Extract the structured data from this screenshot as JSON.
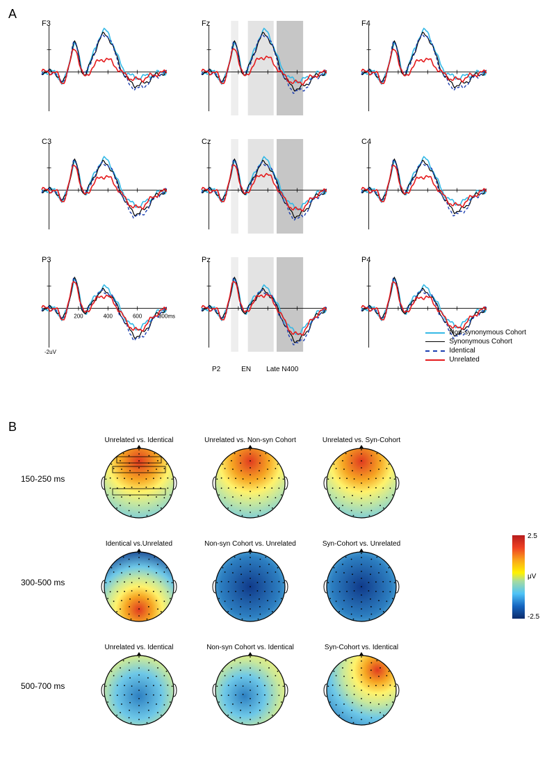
{
  "panelA": {
    "label": "A",
    "electrodes": [
      "F3",
      "Fz",
      "F4",
      "C3",
      "Cz",
      "C4",
      "P3",
      "Pz",
      "P4"
    ],
    "x_range_ms": [
      -50,
      800
    ],
    "x_ticks": [
      200,
      400,
      600
    ],
    "x_tick_last_label": "800ms",
    "y_scale_uv": 2,
    "y_scale_label": "-2uV",
    "conditions": [
      {
        "name": "Non-synonymous Cohort",
        "color": "#35b9e6",
        "dash": "none",
        "width": 1.6
      },
      {
        "name": "Synonymous Cohort",
        "color": "#000000",
        "dash": "none",
        "width": 1.2
      },
      {
        "name": "Identical",
        "color": "#1c3fb0",
        "dash": "4,3",
        "width": 1.4
      },
      {
        "name": "Unrelated",
        "color": "#e41a1c",
        "dash": "none",
        "width": 1.6
      }
    ],
    "bands": [
      {
        "label": "P2",
        "start_ms": 150,
        "end_ms": 200,
        "fill": "#eeeeee"
      },
      {
        "label": "EN",
        "start_ms": 265,
        "end_ms": 440,
        "fill": "#e3e3e3"
      },
      {
        "label": "Late N400",
        "start_ms": 460,
        "end_ms": 640,
        "fill": "#c6c6c6"
      }
    ],
    "band_columns": [
      1
    ],
    "waveforms": {
      "F3": {
        "peak_row": 0,
        "unrel_offset": -2.2,
        "late_drop": -1.5
      },
      "Fz": {
        "peak_row": 0,
        "unrel_offset": -2.0,
        "late_drop": -1.8
      },
      "F4": {
        "peak_row": 0,
        "unrel_offset": -2.2,
        "late_drop": -1.5
      },
      "C3": {
        "peak_row": 1,
        "unrel_offset": -1.2,
        "late_drop": -2.4
      },
      "Cz": {
        "peak_row": 1,
        "unrel_offset": -1.0,
        "late_drop": -2.6
      },
      "C4": {
        "peak_row": 1,
        "unrel_offset": -1.2,
        "late_drop": -2.2
      },
      "P3": {
        "peak_row": 2,
        "unrel_offset": -0.4,
        "late_drop": -2.8
      },
      "Pz": {
        "peak_row": 2,
        "unrel_offset": -0.3,
        "late_drop": -3.2
      },
      "P4": {
        "peak_row": 2,
        "unrel_offset": -0.5,
        "late_drop": -2.6
      }
    }
  },
  "panelB": {
    "label": "B",
    "time_windows": [
      "150-250 ms",
      "300-500 ms",
      "500-700 ms"
    ],
    "rows": [
      {
        "time": "150-250 ms",
        "maps": [
          {
            "title": "Unrelated vs. Identical",
            "pattern": "front_pos",
            "boxes": true
          },
          {
            "title": "Unrelated vs. Non-syn Cohort",
            "pattern": "front_pos",
            "boxes": false
          },
          {
            "title": "Unrelated vs. Syn-Cohort",
            "pattern": "front_pos",
            "boxes": false
          }
        ]
      },
      {
        "time": "300-500 ms",
        "maps": [
          {
            "title": "Identical vs.Unrelated",
            "pattern": "post_pos_front_neg",
            "boxes": false
          },
          {
            "title": "Non-syn Cohort vs. Unrelated",
            "pattern": "all_neg",
            "boxes": false
          },
          {
            "title": "Syn-Cohort vs. Unrelated",
            "pattern": "all_neg",
            "boxes": false
          }
        ]
      },
      {
        "time": "500-700 ms",
        "maps": [
          {
            "title": "Unrelated vs. Identical",
            "pattern": "center_neg",
            "boxes": false
          },
          {
            "title": "Non-syn Cohort vs. Identical",
            "pattern": "center_neg_left",
            "boxes": false
          },
          {
            "title": "Syn-Cohort vs. Identical",
            "pattern": "right_pos_center_neg",
            "boxes": false
          }
        ]
      }
    ],
    "colorbar": {
      "min": -2.5,
      "mid_label": "μV",
      "max": 2.5,
      "stops": [
        {
          "pct": 0,
          "color": "#b71c1c"
        },
        {
          "pct": 15,
          "color": "#ef4123"
        },
        {
          "pct": 30,
          "color": "#faa61a"
        },
        {
          "pct": 45,
          "color": "#fff200"
        },
        {
          "pct": 55,
          "color": "#a6dba0"
        },
        {
          "pct": 70,
          "color": "#4fc3f7"
        },
        {
          "pct": 85,
          "color": "#1565c0"
        },
        {
          "pct": 100,
          "color": "#0d2b6b"
        }
      ]
    },
    "topo_colors": {
      "pos_high": "#e03a20",
      "pos_mid": "#f6a623",
      "pos_low": "#fff26b",
      "zero": "#c8e89c",
      "neg_low": "#6ec8e8",
      "neg_mid": "#2d7fc1",
      "neg_high": "#103a8a"
    },
    "electrode_dots": 62
  }
}
